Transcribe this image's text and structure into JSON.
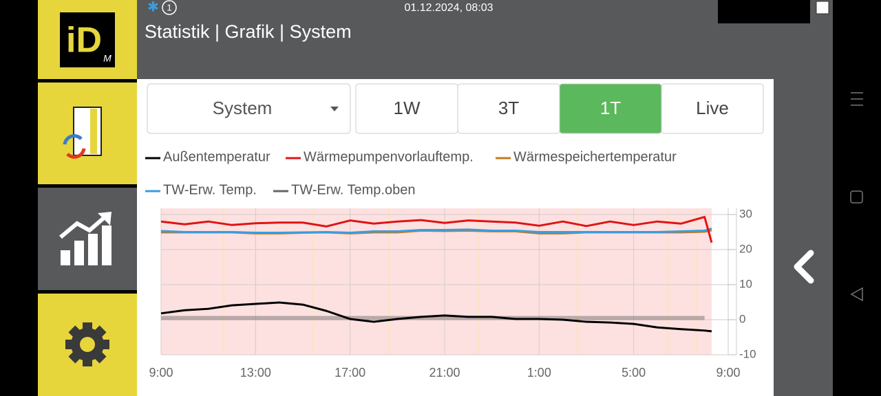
{
  "status": {
    "badge": "1",
    "datetime": "01.12.2024, 08:03"
  },
  "header": {
    "title": "Statistik | Grafik | System"
  },
  "logo": {
    "main": "iD",
    "sub": "M"
  },
  "dropdown": "System",
  "tabs": [
    "1W",
    "3T",
    "1T",
    "Live"
  ],
  "chart_data": {
    "type": "line",
    "x": [
      9,
      10,
      11,
      12,
      13,
      14,
      15,
      16,
      17,
      18,
      19,
      20,
      21,
      22,
      23,
      24,
      25,
      26,
      27,
      28,
      29,
      30,
      31,
      32,
      32.3
    ],
    "xlim": [
      9,
      33
    ],
    "xticks": [
      {
        "value": 9,
        "label": "9:00"
      },
      {
        "value": 13,
        "label": "13:00"
      },
      {
        "value": 17,
        "label": "17:00"
      },
      {
        "value": 21,
        "label": "21:00"
      },
      {
        "value": 25,
        "label": "1:00"
      },
      {
        "value": 29,
        "label": "5:00"
      },
      {
        "value": 33,
        "label": "9:00"
      }
    ],
    "ylim": [
      -10,
      30
    ],
    "yticks": [
      30,
      20,
      10,
      0,
      -10
    ],
    "grid": true,
    "series": [
      {
        "name": "Außentemperatur",
        "color": "#000000",
        "values": [
          1.8,
          2.7,
          3.1,
          4.1,
          4.5,
          4.9,
          4.3,
          2.5,
          0.2,
          -0.6,
          0.2,
          0.8,
          1.2,
          0.8,
          0.8,
          0.2,
          0.2,
          0,
          -0.6,
          -0.8,
          -1.2,
          -2.2,
          -2.7,
          -3.1,
          -3.3
        ]
      },
      {
        "name": "Wärmepumpenvorlauftemp.",
        "color": "#e01414",
        "values": [
          28,
          27.2,
          28,
          27,
          27.5,
          27.7,
          27.7,
          26.6,
          28.3,
          27.4,
          28,
          28.4,
          27.6,
          28.3,
          28,
          27.7,
          26.8,
          28,
          26.7,
          28,
          27,
          28,
          27.4,
          29.3,
          22
        ]
      },
      {
        "name": "Wärmespeichertemperatur",
        "color": "#c8781e",
        "values": [
          24.9,
          24.9,
          24.9,
          24.9,
          24.6,
          24.6,
          24.8,
          24.9,
          24.6,
          24.9,
          24.9,
          25.4,
          25.3,
          25.4,
          25.2,
          25.2,
          24.6,
          24.6,
          24.9,
          24.9,
          24.9,
          24.9,
          24.9,
          25.1,
          25.5
        ]
      },
      {
        "name": "TW-Erw. Temp.",
        "color": "#3a9de0",
        "values": [
          25.3,
          25,
          25,
          25,
          24.8,
          24.8,
          24.9,
          25,
          24.8,
          25.2,
          25.2,
          25.6,
          25.6,
          25.7,
          25.4,
          25.4,
          25,
          25,
          25,
          25,
          25,
          25,
          25.2,
          25.4,
          26
        ]
      },
      {
        "name": "TW-Erw. Temp.oben",
        "color": "#666666",
        "values": [
          0.5,
          0.5,
          0.5,
          0.5,
          0.5,
          0.5,
          0.5,
          0.5,
          0.5,
          0.5,
          0.5,
          0.5,
          0.5,
          0.5,
          0.5,
          0.5,
          0.5,
          0.5,
          0.5,
          0.5,
          0.5,
          0.5,
          0.5,
          0.5,
          null
        ]
      }
    ]
  }
}
